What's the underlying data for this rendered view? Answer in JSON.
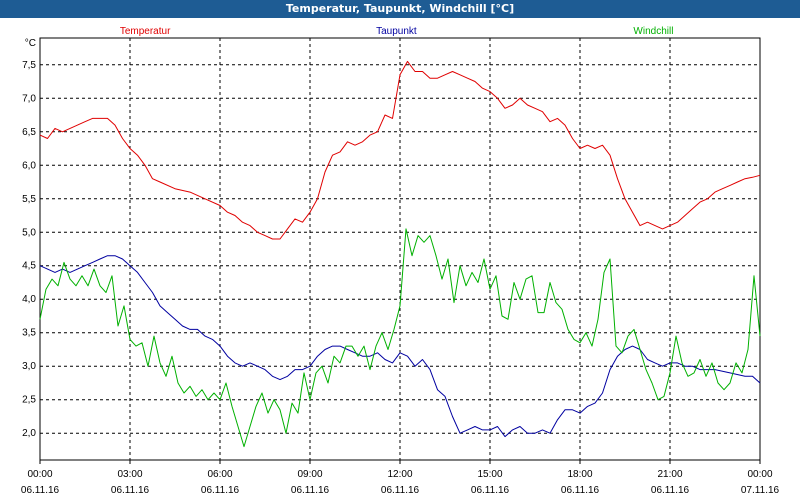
{
  "window": {
    "title": "Temperatur, Taupunkt, Windchill [°C]"
  },
  "chart_data": {
    "type": "line",
    "title": "Temperatur, Taupunkt, Windchill [°C]",
    "ylabel": "°C",
    "xlabel": "",
    "ylim": [
      1.6,
      7.9
    ],
    "xlim": [
      0,
      24
    ],
    "grid": true,
    "legend_position": "top",
    "y_ticks": [
      "2,0",
      "2,5",
      "3,0",
      "3,5",
      "4,0",
      "4,5",
      "5,0",
      "5,5",
      "6,0",
      "6,5",
      "7,0",
      "7,5"
    ],
    "y_tick_values": [
      2.0,
      2.5,
      3.0,
      3.5,
      4.0,
      4.5,
      5.0,
      5.5,
      6.0,
      6.5,
      7.0,
      7.5
    ],
    "x_ticks": [
      {
        "x": 0,
        "time": "00:00",
        "date": "06.11.16"
      },
      {
        "x": 3,
        "time": "03:00",
        "date": "06.11.16"
      },
      {
        "x": 6,
        "time": "06:00",
        "date": "06.11.16"
      },
      {
        "x": 9,
        "time": "09:00",
        "date": "06.11.16"
      },
      {
        "x": 12,
        "time": "12:00",
        "date": "06.11.16"
      },
      {
        "x": 15,
        "time": "15:00",
        "date": "06.11.16"
      },
      {
        "x": 18,
        "time": "18:00",
        "date": "06.11.16"
      },
      {
        "x": 21,
        "time": "21:00",
        "date": "06.11.16"
      },
      {
        "x": 24,
        "time": "00:00",
        "date": "07.11.16"
      }
    ],
    "series": [
      {
        "name": "Temperatur",
        "color": "#e00000",
        "points": [
          [
            0,
            6.45
          ],
          [
            0.25,
            6.4
          ],
          [
            0.5,
            6.55
          ],
          [
            0.75,
            6.5
          ],
          [
            1,
            6.55
          ],
          [
            1.25,
            6.6
          ],
          [
            1.5,
            6.65
          ],
          [
            1.75,
            6.7
          ],
          [
            2,
            6.7
          ],
          [
            2.25,
            6.7
          ],
          [
            2.5,
            6.6
          ],
          [
            2.75,
            6.4
          ],
          [
            3,
            6.25
          ],
          [
            3.25,
            6.15
          ],
          [
            3.5,
            6.0
          ],
          [
            3.75,
            5.8
          ],
          [
            4,
            5.75
          ],
          [
            4.5,
            5.65
          ],
          [
            5,
            5.6
          ],
          [
            5.5,
            5.5
          ],
          [
            6,
            5.4
          ],
          [
            6.25,
            5.3
          ],
          [
            6.5,
            5.25
          ],
          [
            6.75,
            5.15
          ],
          [
            7,
            5.1
          ],
          [
            7.25,
            5.0
          ],
          [
            7.5,
            4.95
          ],
          [
            7.75,
            4.9
          ],
          [
            8,
            4.9
          ],
          [
            8.25,
            5.05
          ],
          [
            8.5,
            5.2
          ],
          [
            8.75,
            5.15
          ],
          [
            9,
            5.3
          ],
          [
            9.25,
            5.5
          ],
          [
            9.5,
            5.9
          ],
          [
            9.75,
            6.15
          ],
          [
            10,
            6.2
          ],
          [
            10.25,
            6.35
          ],
          [
            10.5,
            6.3
          ],
          [
            10.75,
            6.35
          ],
          [
            11,
            6.45
          ],
          [
            11.25,
            6.5
          ],
          [
            11.5,
            6.75
          ],
          [
            11.75,
            6.7
          ],
          [
            12,
            7.35
          ],
          [
            12.25,
            7.55
          ],
          [
            12.5,
            7.4
          ],
          [
            12.75,
            7.4
          ],
          [
            13,
            7.3
          ],
          [
            13.25,
            7.3
          ],
          [
            13.5,
            7.35
          ],
          [
            13.75,
            7.4
          ],
          [
            14,
            7.35
          ],
          [
            14.25,
            7.3
          ],
          [
            14.5,
            7.25
          ],
          [
            14.75,
            7.15
          ],
          [
            15,
            7.1
          ],
          [
            15.25,
            7.0
          ],
          [
            15.5,
            6.85
          ],
          [
            15.75,
            6.9
          ],
          [
            16,
            7.0
          ],
          [
            16.25,
            6.9
          ],
          [
            16.5,
            6.85
          ],
          [
            16.75,
            6.8
          ],
          [
            17,
            6.65
          ],
          [
            17.25,
            6.7
          ],
          [
            17.5,
            6.6
          ],
          [
            17.75,
            6.4
          ],
          [
            18,
            6.25
          ],
          [
            18.25,
            6.3
          ],
          [
            18.5,
            6.25
          ],
          [
            18.75,
            6.3
          ],
          [
            19,
            6.15
          ],
          [
            19.25,
            5.8
          ],
          [
            19.5,
            5.5
          ],
          [
            19.75,
            5.3
          ],
          [
            20,
            5.1
          ],
          [
            20.25,
            5.15
          ],
          [
            20.5,
            5.1
          ],
          [
            20.75,
            5.05
          ],
          [
            21,
            5.1
          ],
          [
            21.25,
            5.15
          ],
          [
            21.5,
            5.25
          ],
          [
            21.75,
            5.35
          ],
          [
            22,
            5.45
          ],
          [
            22.25,
            5.5
          ],
          [
            22.5,
            5.6
          ],
          [
            22.75,
            5.65
          ],
          [
            23,
            5.7
          ],
          [
            23.25,
            5.75
          ],
          [
            23.5,
            5.8
          ],
          [
            23.75,
            5.82
          ],
          [
            24,
            5.85
          ]
        ]
      },
      {
        "name": "Taupunkt",
        "color": "#0000a0",
        "points": [
          [
            0,
            4.5
          ],
          [
            0.25,
            4.45
          ],
          [
            0.5,
            4.4
          ],
          [
            0.75,
            4.45
          ],
          [
            1,
            4.4
          ],
          [
            1.25,
            4.45
          ],
          [
            1.5,
            4.5
          ],
          [
            1.75,
            4.55
          ],
          [
            2,
            4.6
          ],
          [
            2.25,
            4.65
          ],
          [
            2.5,
            4.65
          ],
          [
            2.75,
            4.6
          ],
          [
            3,
            4.5
          ],
          [
            3.25,
            4.4
          ],
          [
            3.5,
            4.25
          ],
          [
            3.75,
            4.1
          ],
          [
            4,
            3.9
          ],
          [
            4.25,
            3.8
          ],
          [
            4.5,
            3.7
          ],
          [
            4.75,
            3.6
          ],
          [
            5,
            3.55
          ],
          [
            5.25,
            3.55
          ],
          [
            5.5,
            3.45
          ],
          [
            5.75,
            3.4
          ],
          [
            6,
            3.3
          ],
          [
            6.25,
            3.15
          ],
          [
            6.5,
            3.05
          ],
          [
            6.75,
            3.0
          ],
          [
            7,
            3.05
          ],
          [
            7.25,
            3.0
          ],
          [
            7.5,
            2.95
          ],
          [
            7.75,
            2.85
          ],
          [
            8,
            2.8
          ],
          [
            8.25,
            2.85
          ],
          [
            8.5,
            2.95
          ],
          [
            8.75,
            2.95
          ],
          [
            9,
            3.0
          ],
          [
            9.25,
            3.15
          ],
          [
            9.5,
            3.25
          ],
          [
            9.75,
            3.3
          ],
          [
            10,
            3.3
          ],
          [
            10.25,
            3.25
          ],
          [
            10.5,
            3.2
          ],
          [
            10.75,
            3.15
          ],
          [
            11,
            3.15
          ],
          [
            11.25,
            3.2
          ],
          [
            11.5,
            3.1
          ],
          [
            11.75,
            3.05
          ],
          [
            12,
            3.2
          ],
          [
            12.25,
            3.15
          ],
          [
            12.5,
            3.0
          ],
          [
            12.75,
            3.1
          ],
          [
            13,
            2.95
          ],
          [
            13.25,
            2.65
          ],
          [
            13.5,
            2.55
          ],
          [
            13.75,
            2.25
          ],
          [
            14,
            2.0
          ],
          [
            14.25,
            2.05
          ],
          [
            14.5,
            2.1
          ],
          [
            14.75,
            2.05
          ],
          [
            15,
            2.05
          ],
          [
            15.25,
            2.1
          ],
          [
            15.5,
            1.95
          ],
          [
            15.75,
            2.05
          ],
          [
            16,
            2.1
          ],
          [
            16.25,
            2.0
          ],
          [
            16.5,
            2.0
          ],
          [
            16.75,
            2.05
          ],
          [
            17,
            2.0
          ],
          [
            17.25,
            2.2
          ],
          [
            17.5,
            2.35
          ],
          [
            17.75,
            2.35
          ],
          [
            18,
            2.3
          ],
          [
            18.25,
            2.4
          ],
          [
            18.5,
            2.45
          ],
          [
            18.75,
            2.6
          ],
          [
            19,
            2.95
          ],
          [
            19.25,
            3.15
          ],
          [
            19.5,
            3.25
          ],
          [
            19.75,
            3.3
          ],
          [
            20,
            3.25
          ],
          [
            20.25,
            3.1
          ],
          [
            20.5,
            3.05
          ],
          [
            20.75,
            3.0
          ],
          [
            21,
            3.05
          ],
          [
            21.25,
            3.05
          ],
          [
            21.5,
            3.0
          ],
          [
            21.75,
            3.0
          ],
          [
            22,
            2.95
          ],
          [
            22.5,
            2.95
          ],
          [
            23,
            2.9
          ],
          [
            23.5,
            2.85
          ],
          [
            23.75,
            2.85
          ],
          [
            24,
            2.75
          ]
        ]
      },
      {
        "name": "Windchill",
        "color": "#00b000",
        "points": [
          [
            0,
            3.7
          ],
          [
            0.2,
            4.15
          ],
          [
            0.4,
            4.3
          ],
          [
            0.6,
            4.2
          ],
          [
            0.8,
            4.55
          ],
          [
            1,
            4.3
          ],
          [
            1.2,
            4.2
          ],
          [
            1.4,
            4.35
          ],
          [
            1.6,
            4.2
          ],
          [
            1.8,
            4.45
          ],
          [
            2,
            4.2
          ],
          [
            2.2,
            4.1
          ],
          [
            2.4,
            4.35
          ],
          [
            2.6,
            3.6
          ],
          [
            2.8,
            3.9
          ],
          [
            3,
            3.4
          ],
          [
            3.2,
            3.3
          ],
          [
            3.4,
            3.35
          ],
          [
            3.6,
            3.0
          ],
          [
            3.8,
            3.45
          ],
          [
            4,
            3.05
          ],
          [
            4.2,
            2.85
          ],
          [
            4.4,
            3.15
          ],
          [
            4.6,
            2.75
          ],
          [
            4.8,
            2.6
          ],
          [
            5,
            2.7
          ],
          [
            5.2,
            2.55
          ],
          [
            5.4,
            2.65
          ],
          [
            5.6,
            2.5
          ],
          [
            5.8,
            2.6
          ],
          [
            6,
            2.5
          ],
          [
            6.2,
            2.75
          ],
          [
            6.4,
            2.4
          ],
          [
            6.6,
            2.1
          ],
          [
            6.8,
            1.8
          ],
          [
            7,
            2.1
          ],
          [
            7.2,
            2.4
          ],
          [
            7.4,
            2.6
          ],
          [
            7.6,
            2.3
          ],
          [
            7.8,
            2.5
          ],
          [
            8,
            2.35
          ],
          [
            8.2,
            2.0
          ],
          [
            8.4,
            2.45
          ],
          [
            8.6,
            2.3
          ],
          [
            8.8,
            2.9
          ],
          [
            9,
            2.5
          ],
          [
            9.2,
            2.9
          ],
          [
            9.4,
            3.0
          ],
          [
            9.6,
            2.75
          ],
          [
            9.8,
            3.15
          ],
          [
            10,
            3.05
          ],
          [
            10.2,
            3.3
          ],
          [
            10.4,
            3.3
          ],
          [
            10.6,
            3.15
          ],
          [
            10.8,
            3.3
          ],
          [
            11,
            2.95
          ],
          [
            11.2,
            3.3
          ],
          [
            11.4,
            3.5
          ],
          [
            11.6,
            3.25
          ],
          [
            11.8,
            3.55
          ],
          [
            12,
            3.9
          ],
          [
            12.2,
            5.05
          ],
          [
            12.4,
            4.65
          ],
          [
            12.6,
            4.95
          ],
          [
            12.8,
            4.85
          ],
          [
            13,
            4.95
          ],
          [
            13.2,
            4.65
          ],
          [
            13.4,
            4.3
          ],
          [
            13.6,
            4.6
          ],
          [
            13.8,
            3.95
          ],
          [
            14,
            4.5
          ],
          [
            14.2,
            4.2
          ],
          [
            14.4,
            4.4
          ],
          [
            14.6,
            4.25
          ],
          [
            14.8,
            4.6
          ],
          [
            15,
            4.15
          ],
          [
            15.2,
            4.35
          ],
          [
            15.4,
            3.75
          ],
          [
            15.6,
            3.7
          ],
          [
            15.8,
            4.25
          ],
          [
            16,
            4.0
          ],
          [
            16.2,
            4.3
          ],
          [
            16.4,
            4.35
          ],
          [
            16.6,
            3.8
          ],
          [
            16.8,
            3.8
          ],
          [
            17,
            4.25
          ],
          [
            17.2,
            3.95
          ],
          [
            17.4,
            3.85
          ],
          [
            17.6,
            3.55
          ],
          [
            17.8,
            3.4
          ],
          [
            18,
            3.35
          ],
          [
            18.2,
            3.5
          ],
          [
            18.4,
            3.3
          ],
          [
            18.6,
            3.7
          ],
          [
            18.8,
            4.4
          ],
          [
            19,
            4.6
          ],
          [
            19.2,
            3.3
          ],
          [
            19.4,
            3.2
          ],
          [
            19.6,
            3.45
          ],
          [
            19.8,
            3.55
          ],
          [
            20,
            3.25
          ],
          [
            20.2,
            2.95
          ],
          [
            20.4,
            2.75
          ],
          [
            20.6,
            2.5
          ],
          [
            20.8,
            2.55
          ],
          [
            21,
            2.9
          ],
          [
            21.2,
            3.45
          ],
          [
            21.4,
            3.05
          ],
          [
            21.6,
            2.85
          ],
          [
            21.8,
            2.9
          ],
          [
            22,
            3.1
          ],
          [
            22.2,
            2.85
          ],
          [
            22.4,
            3.05
          ],
          [
            22.6,
            2.75
          ],
          [
            22.8,
            2.65
          ],
          [
            23,
            2.75
          ],
          [
            23.2,
            3.05
          ],
          [
            23.4,
            2.9
          ],
          [
            23.6,
            3.25
          ],
          [
            23.8,
            4.35
          ],
          [
            24,
            3.45
          ]
        ]
      }
    ]
  }
}
